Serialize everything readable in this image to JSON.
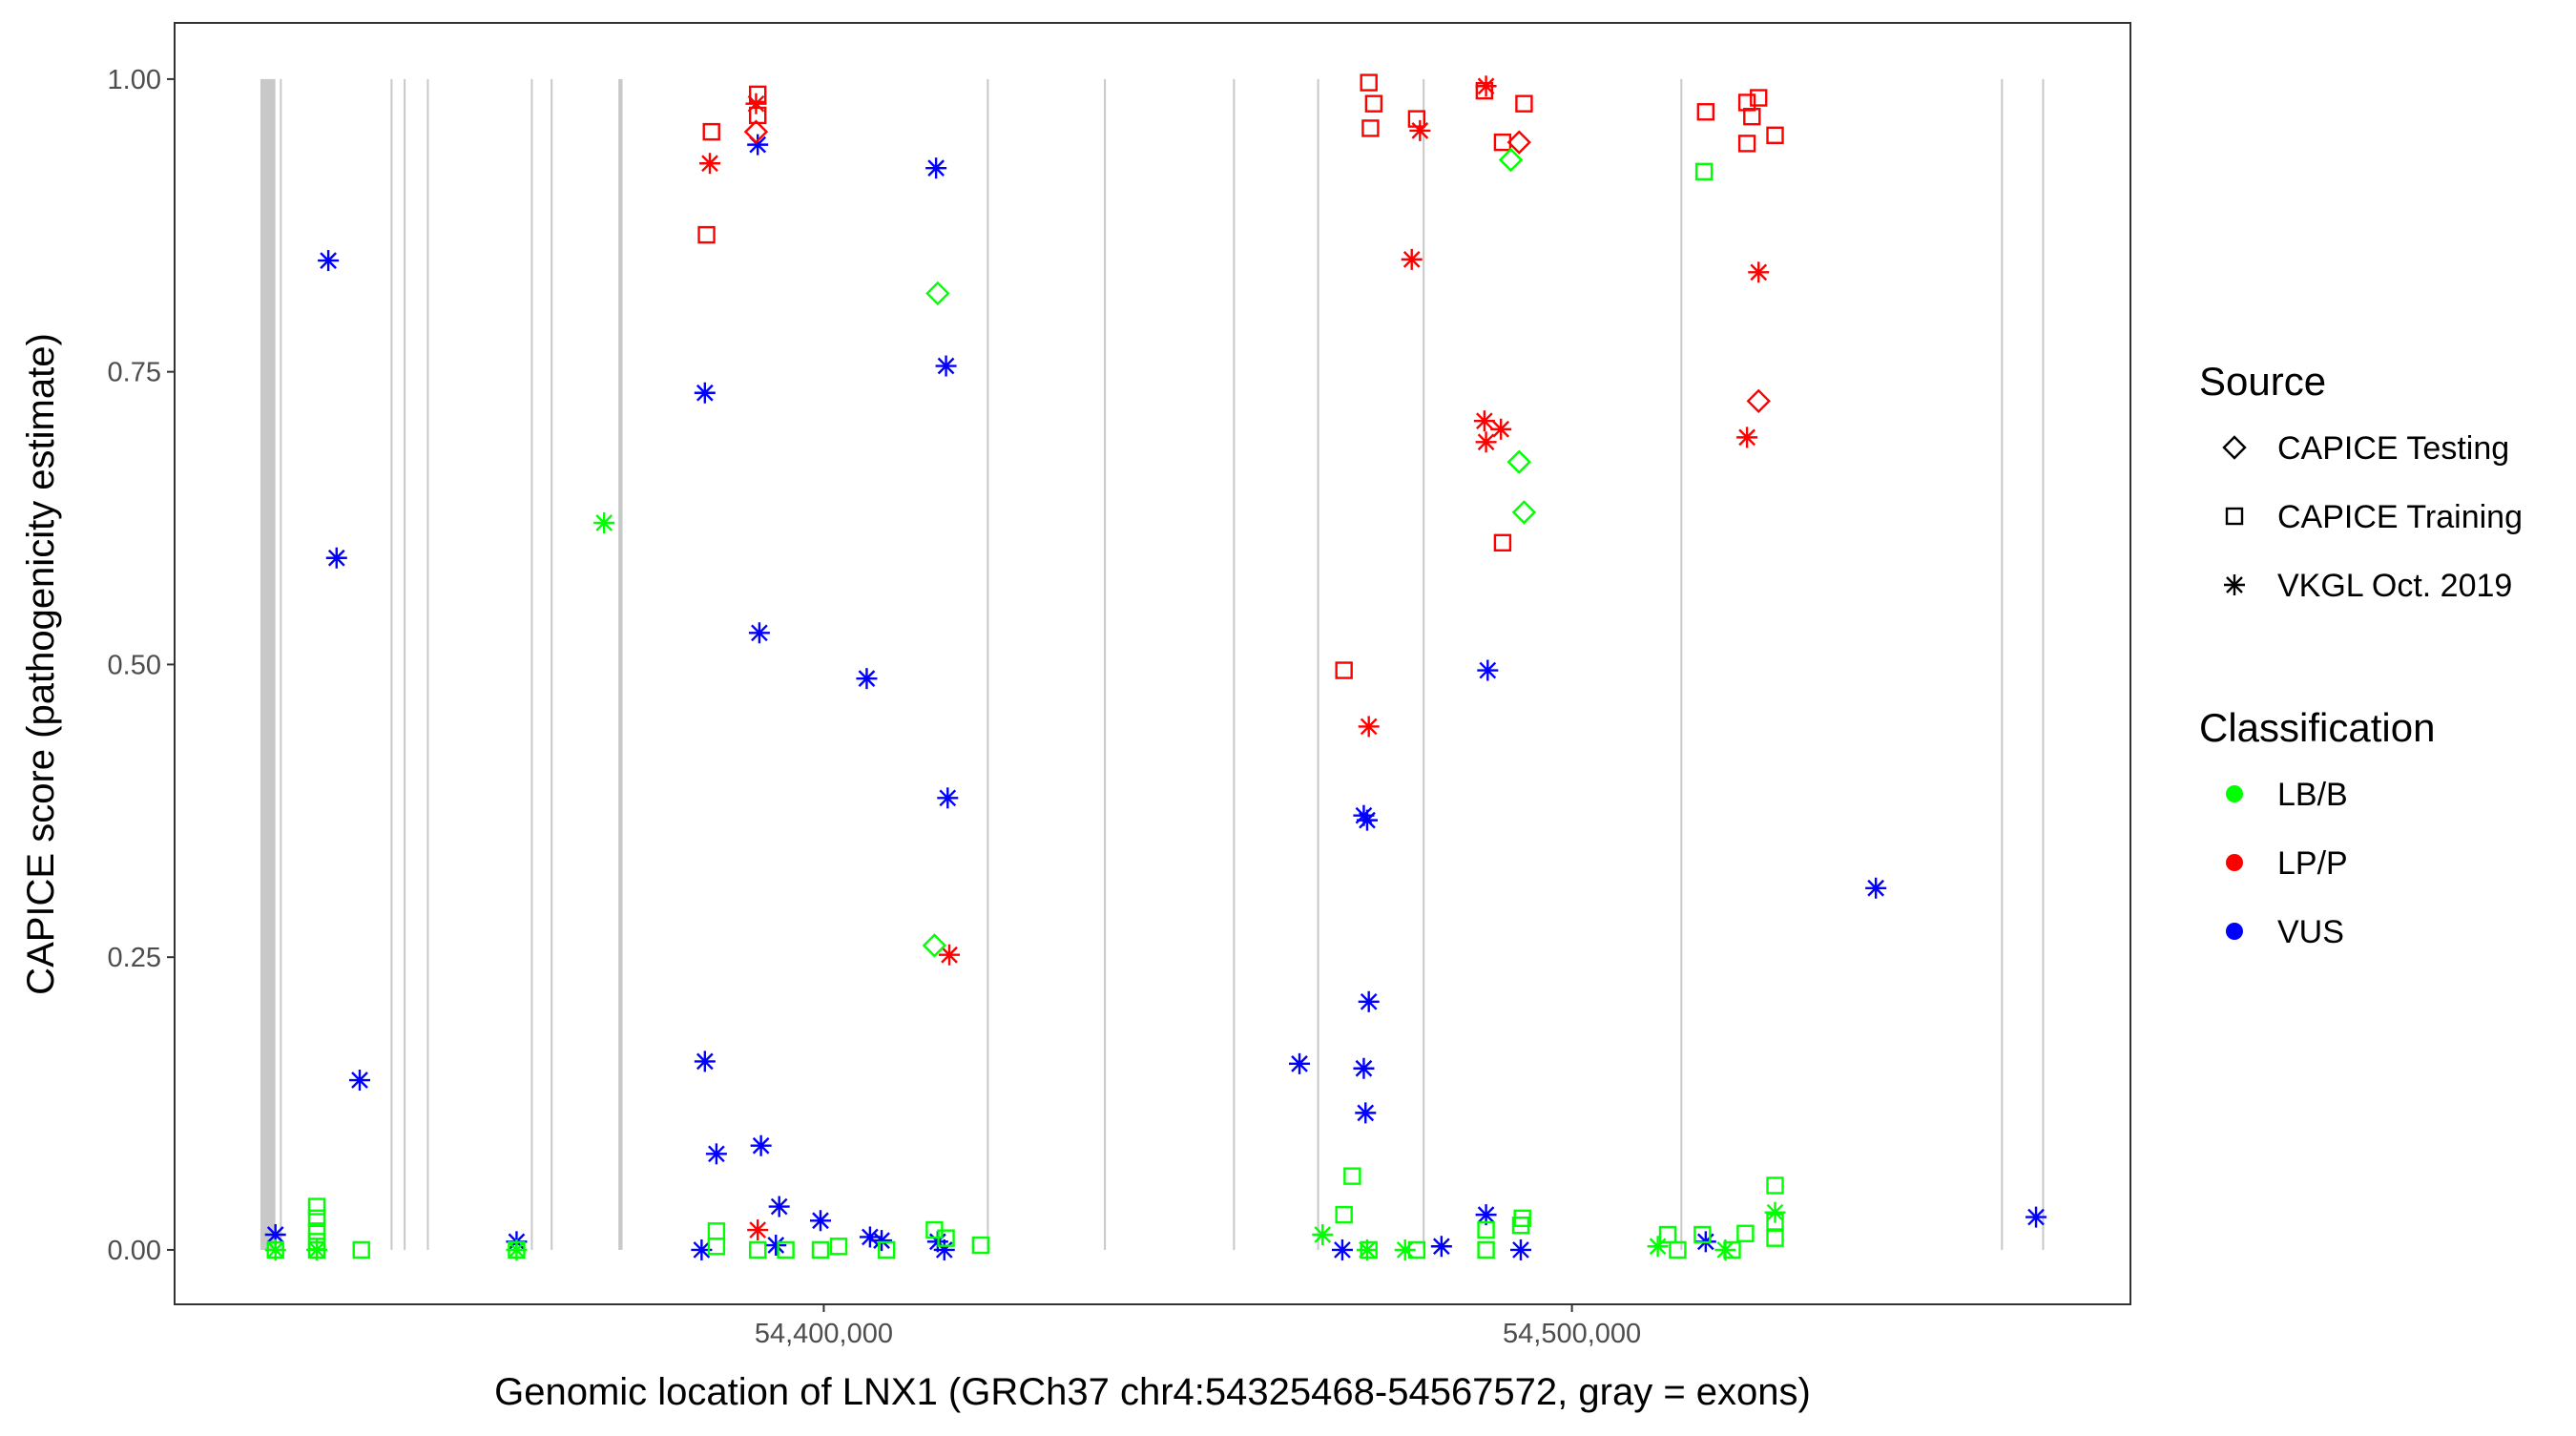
{
  "chart_data": {
    "type": "scatter",
    "xlabel": "Genomic location of LNX1 (GRCh37 chr4:54325468-54567572, gray = exons)",
    "ylabel": "CAPICE score (pathogenicity estimate)",
    "xlim": [
      54313230,
      54574650
    ],
    "ylim": [
      -0.0465,
      1.048
    ],
    "x_ticks": [
      {
        "value": 54400000,
        "label": "54,400,000"
      },
      {
        "value": 54500000,
        "label": "54,500,000"
      }
    ],
    "y_ticks": [
      {
        "value": 0,
        "label": "0.00"
      },
      {
        "value": 0.25,
        "label": "0.25"
      },
      {
        "value": 0.5,
        "label": "0.50"
      },
      {
        "value": 0.75,
        "label": "0.75"
      },
      {
        "value": 1,
        "label": "1.00"
      }
    ],
    "grid": false,
    "exons": [
      [
        54324700,
        54326700
      ],
      [
        54327300,
        54327450
      ],
      [
        54342100,
        54342250
      ],
      [
        54343850,
        54344000
      ],
      [
        54346950,
        54347100
      ],
      [
        54360850,
        54361000
      ],
      [
        54363500,
        54363650
      ],
      [
        54372550,
        54373100
      ],
      [
        54421800,
        54421950
      ],
      [
        54437450,
        54437600
      ],
      [
        54454700,
        54454850
      ],
      [
        54465950,
        54466100
      ],
      [
        54480050,
        54480200
      ],
      [
        54514500,
        54514650
      ],
      [
        54557350,
        54557500
      ],
      [
        54562850,
        54563000
      ]
    ],
    "legend": {
      "placement": "right",
      "source_title": "Source",
      "source_items": [
        {
          "label": "CAPICE Testing",
          "shape": "diamond"
        },
        {
          "label": "CAPICE Training",
          "shape": "square"
        },
        {
          "label": "VKGL Oct. 2019",
          "shape": "asterisk"
        }
      ],
      "class_title": "Classification",
      "class_items": [
        {
          "label": "LB/B",
          "color": "#00ff00"
        },
        {
          "label": "LP/P",
          "color": "#ff0000"
        },
        {
          "label": "VUS",
          "color": "#0000ff"
        }
      ]
    },
    "series": [
      {
        "source": "VKGL Oct. 2019",
        "classification": "VUS",
        "shape": "asterisk",
        "color": "#0000ff",
        "points": [
          [
            54333775,
            0.845
          ],
          [
            54334880,
            0.591
          ],
          [
            54337970,
            0.145
          ],
          [
            54326710,
            0.013
          ],
          [
            54358940,
            0.007
          ],
          [
            54384110,
            0.732
          ],
          [
            54384110,
            0.161
          ],
          [
            54385650,
            0.082
          ],
          [
            54383670,
            0.0
          ],
          [
            54391170,
            0.944
          ],
          [
            54391390,
            0.527
          ],
          [
            54391610,
            0.089
          ],
          [
            54394040,
            0.037
          ],
          [
            54393600,
            0.004
          ],
          [
            54399560,
            0.025
          ],
          [
            54405740,
            0.488
          ],
          [
            54406180,
            0.011
          ],
          [
            54407730,
            0.008
          ],
          [
            54415010,
            0.924
          ],
          [
            54416340,
            0.755
          ],
          [
            54416560,
            0.386
          ],
          [
            54415230,
            0.007
          ],
          [
            54416110,
            0.0
          ],
          [
            54463580,
            0.159
          ],
          [
            54469310,
            0.0
          ],
          [
            54472180,
            0.371
          ],
          [
            54472630,
            0.367
          ],
          [
            54472850,
            0.212
          ],
          [
            54472180,
            0.155
          ],
          [
            54472410,
            0.117
          ],
          [
            54482560,
            0.003
          ],
          [
            54488740,
            0.495
          ],
          [
            54488520,
            0.03
          ],
          [
            54493160,
            0.0
          ],
          [
            54517880,
            0.007
          ],
          [
            54540620,
            0.309
          ],
          [
            54562030,
            0.028
          ]
        ]
      },
      {
        "source": "VKGL Oct. 2019",
        "classification": "LP/P",
        "shape": "asterisk",
        "color": "#ff0000",
        "points": [
          [
            54384770,
            0.928
          ],
          [
            54390950,
            0.979
          ],
          [
            54391170,
            0.017
          ],
          [
            54416780,
            0.252
          ],
          [
            54472850,
            0.447
          ],
          [
            54478590,
            0.846
          ],
          [
            54479690,
            0.956
          ],
          [
            54488520,
            0.994
          ],
          [
            54488300,
            0.708
          ],
          [
            54488520,
            0.69
          ],
          [
            54490510,
            0.701
          ],
          [
            54523400,
            0.694
          ],
          [
            54524950,
            0.835
          ]
        ]
      },
      {
        "source": "VKGL Oct. 2019",
        "classification": "LB/B",
        "shape": "asterisk",
        "color": "#00ff00",
        "points": [
          [
            54370640,
            0.621
          ],
          [
            54326710,
            0.0
          ],
          [
            54332230,
            0.0
          ],
          [
            54358940,
            0.0
          ],
          [
            54466670,
            0.013
          ],
          [
            54472630,
            0.0
          ],
          [
            54477700,
            0.0
          ],
          [
            54511480,
            0.003
          ],
          [
            54527150,
            0.032
          ],
          [
            54520500,
            0.0
          ]
        ]
      },
      {
        "source": "CAPICE Training",
        "classification": "LP/P",
        "shape": "square",
        "color": "#ff0000",
        "points": [
          [
            54384330,
            0.867
          ],
          [
            54384990,
            0.955
          ],
          [
            54391170,
            0.987
          ],
          [
            54391170,
            0.969
          ],
          [
            54472850,
            0.997
          ],
          [
            54473510,
            0.979
          ],
          [
            54473070,
            0.958
          ],
          [
            54479250,
            0.966
          ],
          [
            54469530,
            0.495
          ],
          [
            54488300,
            0.99
          ],
          [
            54490730,
            0.946
          ],
          [
            54493600,
            0.979
          ],
          [
            54490730,
            0.604
          ],
          [
            54517880,
            0.972
          ],
          [
            54523400,
            0.98
          ],
          [
            54524950,
            0.984
          ],
          [
            54524060,
            0.968
          ],
          [
            54523400,
            0.945
          ],
          [
            54527150,
            0.952
          ]
        ]
      },
      {
        "source": "CAPICE Training",
        "classification": "LB/B",
        "shape": "square",
        "color": "#00ff00",
        "points": [
          [
            54517660,
            0.921
          ],
          [
            54332230,
            0.037
          ],
          [
            54332230,
            0.027
          ],
          [
            54332230,
            0.016
          ],
          [
            54332230,
            0.007
          ],
          [
            54332230,
            0.0
          ],
          [
            54326710,
            0.0
          ],
          [
            54338190,
            0.0
          ],
          [
            54358940,
            0.0
          ],
          [
            54385650,
            0.016
          ],
          [
            54385650,
            0.003
          ],
          [
            54391170,
            0.0
          ],
          [
            54394920,
            0.0
          ],
          [
            54399560,
            0.0
          ],
          [
            54401990,
            0.003
          ],
          [
            54408390,
            0.0
          ],
          [
            54414790,
            0.017
          ],
          [
            54416340,
            0.01
          ],
          [
            54420970,
            0.004
          ],
          [
            54470640,
            0.063
          ],
          [
            54469530,
            0.03
          ],
          [
            54472850,
            0.0
          ],
          [
            54479250,
            0.0
          ],
          [
            54488520,
            0.017
          ],
          [
            54488520,
            0.0
          ],
          [
            54493160,
            0.021
          ],
          [
            54493380,
            0.027
          ],
          [
            54512800,
            0.013
          ],
          [
            54514130,
            0.0
          ],
          [
            54517440,
            0.013
          ],
          [
            54523180,
            0.014
          ],
          [
            54527150,
            0.055
          ],
          [
            54527150,
            0.024
          ],
          [
            54527150,
            0.01
          ],
          [
            54521410,
            0.0
          ]
        ]
      },
      {
        "source": "CAPICE Testing",
        "classification": "LP/P",
        "shape": "diamond",
        "color": "#ff0000",
        "points": [
          [
            54390950,
            0.955
          ],
          [
            54492940,
            0.946
          ],
          [
            54524950,
            0.725
          ]
        ]
      },
      {
        "source": "CAPICE Testing",
        "classification": "LB/B",
        "shape": "diamond",
        "color": "#00ff00",
        "points": [
          [
            54415230,
            0.817
          ],
          [
            54414790,
            0.26
          ],
          [
            54491830,
            0.931
          ],
          [
            54492940,
            0.673
          ],
          [
            54493600,
            0.63
          ]
        ]
      }
    ]
  }
}
